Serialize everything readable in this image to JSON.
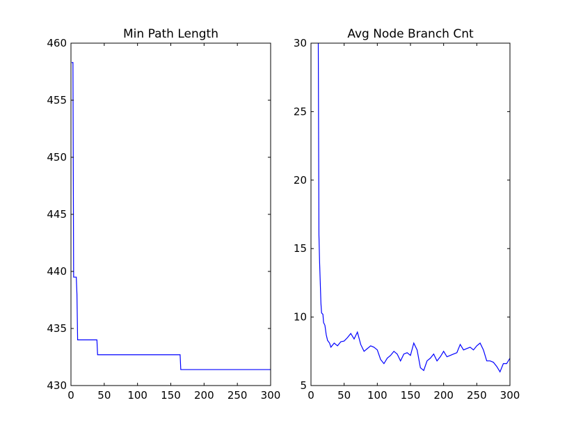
{
  "chart_data": [
    {
      "type": "line",
      "title": "Min Path Length",
      "xlim": [
        0,
        300
      ],
      "xticks": [
        0,
        50,
        100,
        150,
        200,
        250,
        300
      ],
      "ylim": [
        430,
        460
      ],
      "yticks": [
        430,
        435,
        440,
        445,
        450,
        455,
        460
      ],
      "series": [
        {
          "color": "#0000ff",
          "x": [
            1,
            3,
            4,
            8,
            9,
            10,
            39,
            40,
            164,
            165,
            300
          ],
          "values": [
            458.3,
            458.3,
            439.5,
            439.5,
            438,
            434,
            434,
            432.7,
            432.7,
            431.4,
            431.4
          ]
        }
      ]
    },
    {
      "type": "line",
      "title": "Avg Node Branch Cnt",
      "xlim": [
        0,
        300
      ],
      "xticks": [
        0,
        50,
        100,
        150,
        200,
        250,
        300
      ],
      "ylim": [
        5,
        30
      ],
      "yticks": [
        5,
        10,
        15,
        20,
        25,
        30
      ],
      "series": [
        {
          "color": "#0000ff",
          "x": [
            11,
            12,
            13,
            14,
            15,
            16,
            18,
            19,
            21,
            23,
            25,
            28,
            30,
            35,
            40,
            45,
            50,
            55,
            60,
            65,
            70,
            75,
            80,
            85,
            90,
            95,
            100,
            105,
            110,
            115,
            120,
            125,
            130,
            135,
            140,
            145,
            150,
            155,
            160,
            165,
            170,
            175,
            180,
            185,
            190,
            195,
            200,
            205,
            210,
            215,
            220,
            225,
            230,
            235,
            240,
            245,
            250,
            255,
            260,
            265,
            270,
            275,
            280,
            285,
            290,
            295,
            300
          ],
          "values": [
            30,
            16,
            14,
            12.5,
            11,
            10.3,
            10.2,
            9.6,
            9.4,
            8.7,
            8.3,
            8.1,
            7.8,
            8.1,
            7.9,
            8.2,
            8.25,
            8.5,
            8.8,
            8.4,
            8.9,
            8.0,
            7.5,
            7.7,
            7.9,
            7.8,
            7.6,
            6.9,
            6.6,
            7.0,
            7.2,
            7.5,
            7.3,
            6.8,
            7.3,
            7.4,
            7.2,
            8.1,
            7.6,
            6.3,
            6.1,
            6.8,
            7.0,
            7.3,
            6.8,
            7.1,
            7.5,
            7.1,
            7.2,
            7.3,
            7.4,
            8.0,
            7.6,
            7.7,
            7.8,
            7.6,
            7.9,
            8.1,
            7.6,
            6.8,
            6.8,
            6.7,
            6.4,
            6.0,
            6.6,
            6.6,
            7.0
          ]
        }
      ]
    }
  ]
}
